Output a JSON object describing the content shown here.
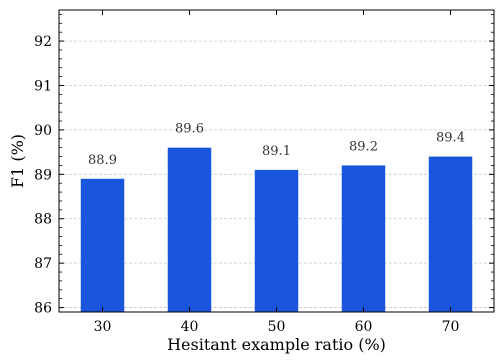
{
  "chart_data": {
    "type": "bar",
    "title": "",
    "xlabel": "Hesitant example ratio (%)",
    "ylabel": "F1 (%)",
    "categories": [
      "30",
      "40",
      "50",
      "60",
      "70"
    ],
    "values": [
      88.9,
      89.6,
      89.1,
      89.2,
      89.4
    ],
    "data_labels": [
      "88.9",
      "89.6",
      "89.1",
      "89.2",
      "89.4"
    ],
    "ylim": [
      85.9,
      92.7
    ],
    "yticks": [
      86,
      87,
      88,
      89,
      90,
      91,
      92
    ],
    "ytick_labels": [
      "86",
      "87",
      "88",
      "89",
      "90",
      "91",
      "92"
    ],
    "grid": "horizontal-dashed",
    "legend": "none",
    "bar_color": "#1a56db"
  }
}
